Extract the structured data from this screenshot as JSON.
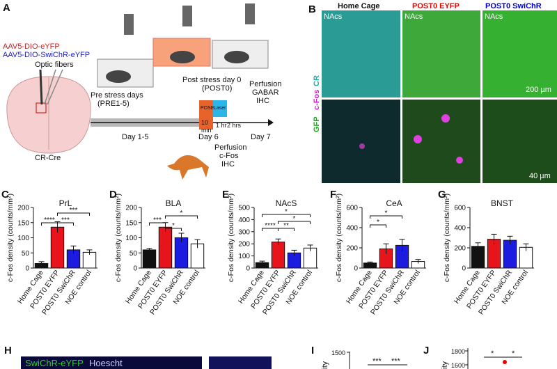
{
  "panel_a": {
    "label": "A",
    "virus_1": "AAV5-DIO-eYFP",
    "virus_2": "AAV5-DIO-SwiChR-eYFP",
    "fibers": "Optic fibers",
    "mouse_line": "CR-Cre",
    "pre": "Pre stress days",
    "pre_days": "(PRE1-5)",
    "post": "Post stress day 0",
    "post_day": "(POST0)",
    "perfusion_1": "Perfusion",
    "perfusion_1b": "GABAR",
    "perfusion_1c": "IHC",
    "pose": "POSE",
    "laser": "Laser",
    "ten": "10",
    "min": "min",
    "one_hr": "1 hr",
    "two_hrs": "2 hrs",
    "day_1_5": "Day 1-5",
    "day_6": "Day 6",
    "day_7": "Day 7",
    "perfusion_2": "Perfusion",
    "perfusion_2b": "c-Fos",
    "perfusion_2c": "IHC"
  },
  "panel_b": {
    "label": "B",
    "col_1": "Home Cage",
    "col_2": "POST0 EYFP",
    "col_3": "POST0 SwiChR",
    "region": "NAcs",
    "stain_1": "GFP",
    "stain_2": "c-Fos",
    "stain_3": "CR",
    "scale_1": "200 µm",
    "scale_2": "40 µm"
  },
  "chart_data": [
    {
      "type": "bar",
      "panel": "C",
      "title": "PrL",
      "y_label": "c-Fos density (counts/mm²)",
      "categories": [
        "Home Cage",
        "POST0 EYFP",
        "POST0 SwiChR",
        "NOE control"
      ],
      "values": [
        15,
        135,
        60,
        52
      ],
      "errors": [
        6,
        18,
        13,
        8
      ],
      "colors": [
        "#111111",
        "#e8141c",
        "#1c1ce0",
        "#ffffff"
      ],
      "ylim": [
        0,
        200
      ],
      "yticks": [
        0,
        50,
        100,
        150,
        200
      ],
      "annotations": [
        "****",
        "***",
        "***"
      ]
    },
    {
      "type": "bar",
      "panel": "D",
      "title": "BLA",
      "y_label": "c-Fos density (counts/mm²)",
      "categories": [
        "Home Cage",
        "POST0 EYFP",
        "POST0 SwiChR",
        "NOE control"
      ],
      "values": [
        60,
        135,
        100,
        80
      ],
      "errors": [
        5,
        15,
        15,
        14
      ],
      "colors": [
        "#111111",
        "#e8141c",
        "#1c1ce0",
        "#ffffff"
      ],
      "ylim": [
        0,
        200
      ],
      "yticks": [
        0,
        50,
        100,
        150,
        200
      ],
      "annotations": [
        "***",
        "*",
        "*"
      ]
    },
    {
      "type": "bar",
      "panel": "E",
      "title": "NAcS",
      "y_label": "c-Fos density (counts/mm²)",
      "categories": [
        "Home Cage",
        "POST0 EYFP",
        "POST0 SwiChR",
        "NOE control"
      ],
      "values": [
        45,
        215,
        125,
        165
      ],
      "errors": [
        12,
        25,
        22,
        25
      ],
      "colors": [
        "#111111",
        "#e8141c",
        "#1c1ce0",
        "#ffffff"
      ],
      "ylim": [
        0,
        500
      ],
      "yticks": [
        0,
        100,
        200,
        300,
        400,
        500
      ],
      "annotations": [
        "****",
        "**",
        "*",
        "*"
      ]
    },
    {
      "type": "bar",
      "panel": "F",
      "title": "CeA",
      "y_label": "c-Fos density (counts/mm²)",
      "categories": [
        "Home Cage",
        "POST0 EYFP",
        "POST0 SwiChR",
        "NOE control"
      ],
      "values": [
        50,
        190,
        225,
        65
      ],
      "errors": [
        10,
        50,
        60,
        20
      ],
      "colors": [
        "#111111",
        "#e8141c",
        "#1c1ce0",
        "#ffffff"
      ],
      "ylim": [
        0,
        600
      ],
      "yticks": [
        0,
        200,
        400,
        600
      ],
      "annotations": [
        "*",
        "*"
      ]
    },
    {
      "type": "bar",
      "panel": "G",
      "title": "BNST",
      "y_label": "c-Fos density (counts/mm²)",
      "categories": [
        "Home Cage",
        "POST0 EYFP",
        "POST0 SwiChR",
        "NOE control"
      ],
      "values": [
        215,
        285,
        275,
        205
      ],
      "errors": [
        35,
        50,
        40,
        35
      ],
      "colors": [
        "#111111",
        "#e8141c",
        "#1c1ce0",
        "#ffffff"
      ],
      "ylim": [
        0,
        600
      ],
      "yticks": [
        0,
        200,
        400,
        600
      ],
      "annotations": []
    }
  ],
  "panel_h": {
    "label": "H",
    "stain_1": "SwiChR-eYFP",
    "stain_2": "Hoescht"
  },
  "panel_i": {
    "label": "I",
    "y_label": "ity",
    "ytick": 1500,
    "annotations": [
      "***",
      "***"
    ]
  },
  "panel_j": {
    "label": "J",
    "y_label": "ity",
    "yticks": [
      1800,
      1600
    ],
    "annotations": [
      "*",
      "*"
    ]
  }
}
